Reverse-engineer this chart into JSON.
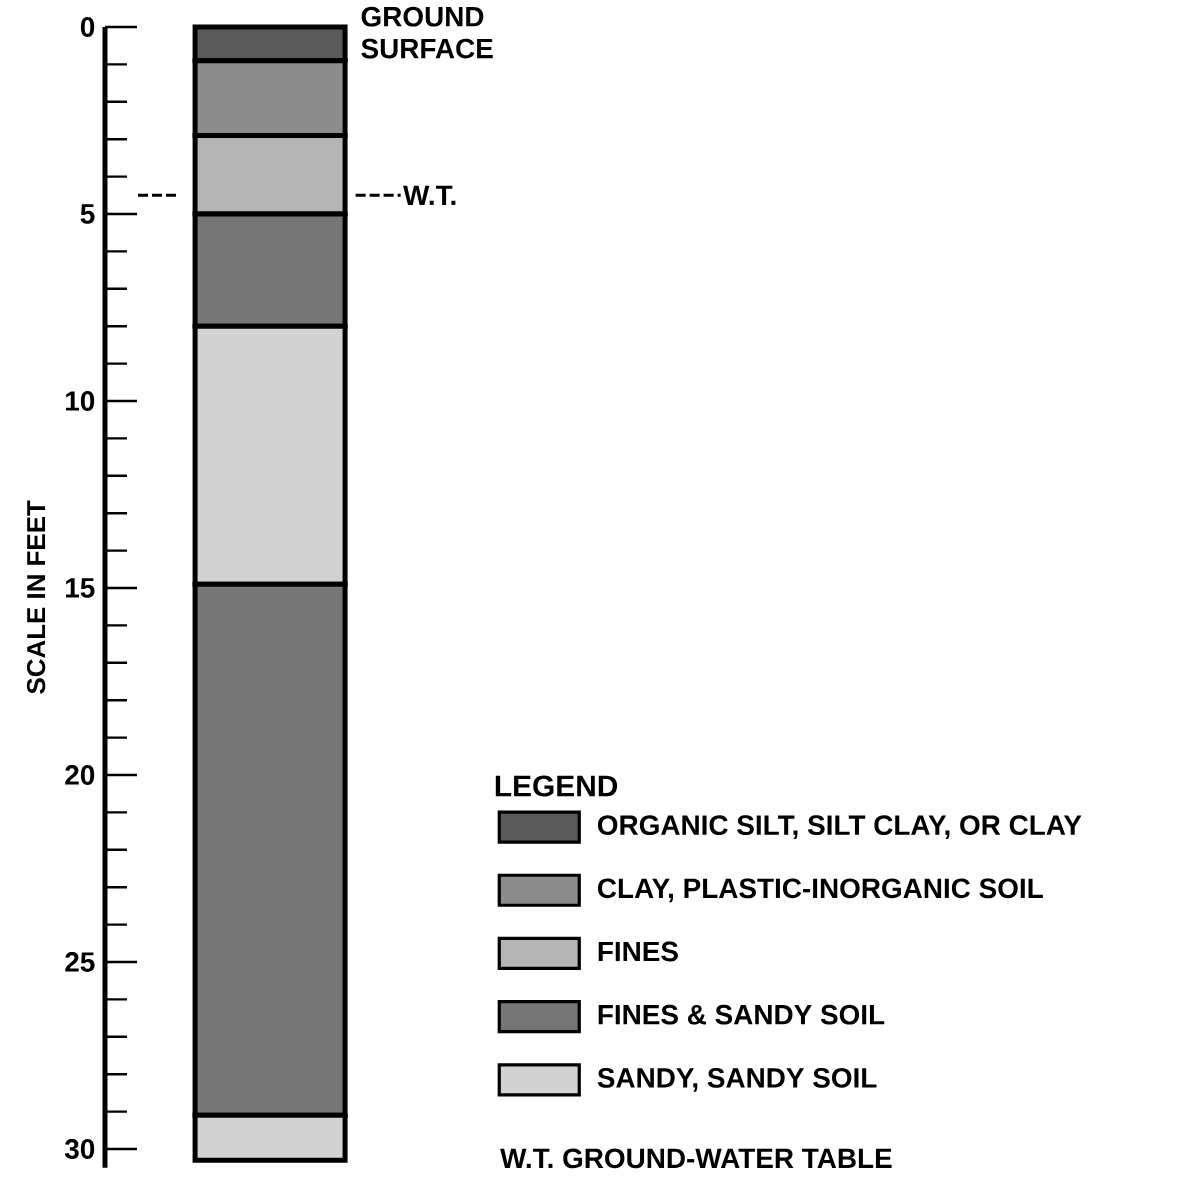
{
  "chart_data": {
    "type": "bar",
    "stacked": true,
    "ylabel": "SCALE IN FEET",
    "legend_title": "LEGEND",
    "legend": "bottom right",
    "categories": [
      null
    ],
    "series": [
      {
        "name": "ORGANIC SILT, SILT CLAY, OR CLAY",
        "color": "#5a5a5a",
        "values": [
          0.9
        ]
      },
      {
        "name": "CLAY, PLASTIC-INORGANIC SOIL",
        "color": "#8c8c8c",
        "values": [
          2.0
        ]
      },
      {
        "name": "FINES",
        "color": "#b4b4b4",
        "values": [
          2.1
        ]
      },
      {
        "name": "FINES & SANDY SOIL",
        "color": "#767676",
        "values": [
          3.0
        ]
      },
      {
        "name": "SANDY, SANDY SOIL",
        "color": "#d2d2d2",
        "values": [
          6.9
        ]
      },
      {
        "color": "#767676",
        "values": [
          14.2
        ]
      },
      {
        "color": "#d2d2d2",
        "values": [
          1.2
        ]
      }
    ],
    "ylim": [
      30.5,
      0
    ],
    "yticks": [
      0,
      5,
      10,
      15,
      20,
      25,
      30
    ],
    "ref_lines": [
      {
        "axis": "y",
        "value": 4.5,
        "label": "W.T.",
        "line_style": "dashed"
      }
    ],
    "annotations": [
      "GROUND SURFACE",
      "W.T. GROUND-WATER TABLE"
    ]
  }
}
